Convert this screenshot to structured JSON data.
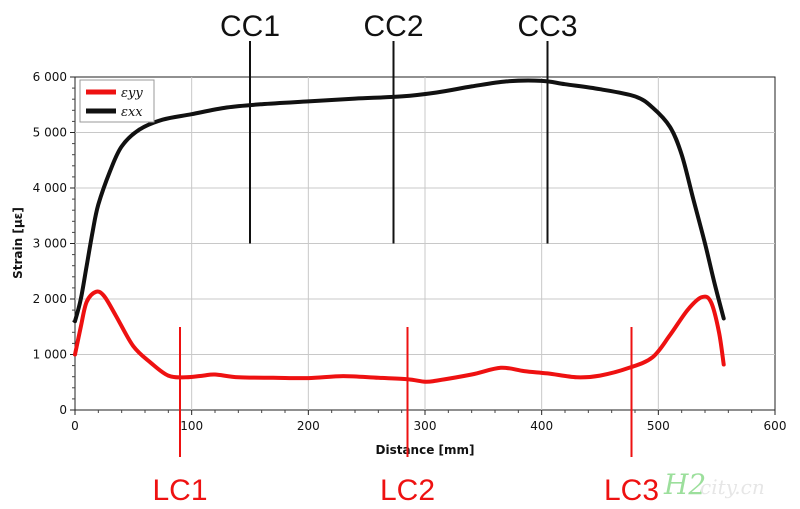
{
  "chart_data": {
    "type": "line",
    "xlabel": "Distance [mm]",
    "ylabel": "Strain [με]",
    "xlim": [
      0,
      600
    ],
    "ylim": [
      0,
      6000
    ],
    "x_ticks": [
      0,
      100,
      200,
      300,
      400,
      500,
      600
    ],
    "y_ticks": [
      0,
      1000,
      2000,
      3000,
      4000,
      5000,
      6000
    ],
    "x_tick_labels": [
      "0",
      "100",
      "200",
      "300",
      "400",
      "500",
      "600"
    ],
    "y_tick_labels": [
      "0",
      "1 000",
      "2 000",
      "3 000",
      "4 000",
      "5 000",
      "6 000"
    ],
    "grid": true,
    "legend_position": "top-left",
    "series": [
      {
        "name": "εyy",
        "color": "#ee1111",
        "points": [
          [
            0,
            1000
          ],
          [
            5,
            1500
          ],
          [
            10,
            1950
          ],
          [
            18,
            2130
          ],
          [
            25,
            2050
          ],
          [
            35,
            1700
          ],
          [
            50,
            1150
          ],
          [
            65,
            850
          ],
          [
            80,
            620
          ],
          [
            95,
            590
          ],
          [
            110,
            620
          ],
          [
            120,
            640
          ],
          [
            140,
            590
          ],
          [
            170,
            580
          ],
          [
            200,
            575
          ],
          [
            230,
            610
          ],
          [
            260,
            580
          ],
          [
            285,
            555
          ],
          [
            300,
            510
          ],
          [
            310,
            530
          ],
          [
            340,
            640
          ],
          [
            365,
            760
          ],
          [
            385,
            700
          ],
          [
            405,
            660
          ],
          [
            430,
            590
          ],
          [
            450,
            620
          ],
          [
            475,
            760
          ],
          [
            495,
            950
          ],
          [
            510,
            1350
          ],
          [
            525,
            1800
          ],
          [
            537,
            2030
          ],
          [
            545,
            1950
          ],
          [
            552,
            1400
          ],
          [
            556,
            820
          ]
        ]
      },
      {
        "name": "εxx",
        "color": "#111111",
        "points": [
          [
            0,
            1600
          ],
          [
            5,
            2000
          ],
          [
            10,
            2600
          ],
          [
            15,
            3200
          ],
          [
            20,
            3700
          ],
          [
            30,
            4300
          ],
          [
            40,
            4750
          ],
          [
            55,
            5050
          ],
          [
            75,
            5230
          ],
          [
            100,
            5330
          ],
          [
            130,
            5450
          ],
          [
            160,
            5510
          ],
          [
            200,
            5560
          ],
          [
            240,
            5610
          ],
          [
            280,
            5650
          ],
          [
            310,
            5720
          ],
          [
            340,
            5830
          ],
          [
            370,
            5920
          ],
          [
            400,
            5930
          ],
          [
            420,
            5870
          ],
          [
            450,
            5780
          ],
          [
            480,
            5650
          ],
          [
            495,
            5450
          ],
          [
            510,
            5100
          ],
          [
            520,
            4600
          ],
          [
            530,
            3800
          ],
          [
            540,
            3000
          ],
          [
            548,
            2300
          ],
          [
            556,
            1650
          ]
        ]
      }
    ],
    "annotations": [
      {
        "label": "CC1",
        "x": 150,
        "color": "#111111",
        "position": "top"
      },
      {
        "label": "CC2",
        "x": 273,
        "color": "#111111",
        "position": "top"
      },
      {
        "label": "CC3",
        "x": 405,
        "color": "#111111",
        "position": "top"
      },
      {
        "label": "LC1",
        "x": 90,
        "color": "#ee1111",
        "position": "bottom"
      },
      {
        "label": "LC2",
        "x": 285,
        "color": "#ee1111",
        "position": "bottom"
      },
      {
        "label": "LC3",
        "x": 477,
        "color": "#ee1111",
        "position": "bottom"
      }
    ]
  },
  "watermark": {
    "text": "H2",
    "sub_text": "city.cn"
  }
}
